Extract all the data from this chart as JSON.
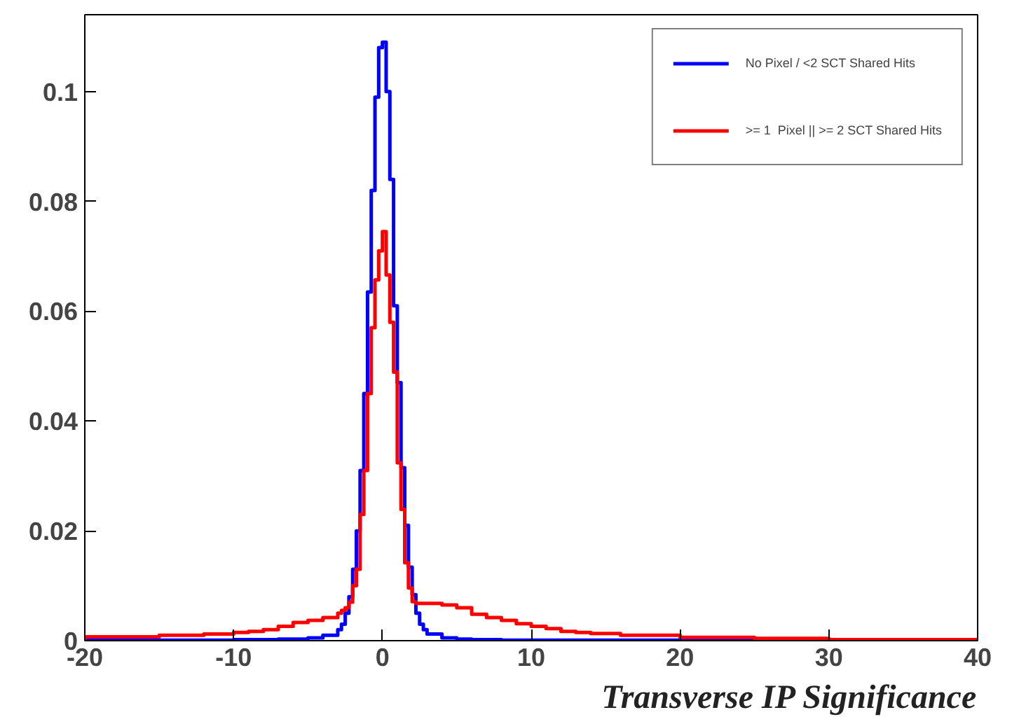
{
  "chart_data": {
    "type": "histogram",
    "xlabel": "Transverse IP Significance",
    "bins": [
      -20,
      -15,
      -12,
      -10,
      -9,
      -8,
      -7,
      -6,
      -5,
      -4,
      -3,
      -2.75,
      -2.5,
      -2.25,
      -2,
      -1.75,
      -1.5,
      -1.25,
      -1,
      -0.75,
      -0.5,
      -0.25,
      0,
      0.25,
      0.5,
      0.75,
      1,
      1.25,
      1.5,
      1.75,
      2,
      2.25,
      2.5,
      2.75,
      3,
      4,
      5,
      6,
      7,
      8,
      9,
      10,
      11,
      12,
      13,
      14,
      16,
      20,
      25,
      30,
      40
    ],
    "series": [
      {
        "name": "No Pixel / <2 SCT Shared Hits",
        "color": "#0000ff",
        "values": [
          0.0001,
          0.0001,
          0.0001,
          0.0002,
          0.0002,
          0.0002,
          0.0003,
          0.0003,
          0.0005,
          0.001,
          0.002,
          0.003,
          0.005,
          0.008,
          0.013,
          0.02,
          0.031,
          0.045,
          0.0635,
          0.082,
          0.099,
          0.108,
          0.109,
          0.1,
          0.084,
          0.061,
          0.047,
          0.0315,
          0.021,
          0.0134,
          0.0084,
          0.005,
          0.003,
          0.002,
          0.0012,
          0.0005,
          0.0003,
          0.0002,
          0.0002,
          0.0001,
          0.0001,
          0.0001,
          0.0001,
          0.0001,
          0.0001,
          0.0001,
          0.0001,
          0.0001,
          0.0001,
          0.0001
        ]
      },
      {
        "name": ">= 1  Pixel || >= 2 SCT Shared Hits",
        "color": "#ff0000",
        "values": [
          0.0007,
          0.001,
          0.0012,
          0.0015,
          0.0017,
          0.002,
          0.0026,
          0.0033,
          0.0037,
          0.0042,
          0.005,
          0.0055,
          0.006,
          0.007,
          0.01,
          0.013,
          0.023,
          0.031,
          0.045,
          0.057,
          0.0657,
          0.071,
          0.0745,
          0.0666,
          0.058,
          0.0489,
          0.0324,
          0.0239,
          0.0142,
          0.0096,
          0.0071,
          0.0068,
          0.0068,
          0.0068,
          0.0068,
          0.0065,
          0.006,
          0.0048,
          0.0042,
          0.0037,
          0.0031,
          0.0026,
          0.0022,
          0.0017,
          0.0015,
          0.0013,
          0.001,
          0.0006,
          0.0004,
          0.0002
        ]
      }
    ],
    "xlim": [
      -20,
      40
    ],
    "xticks": [
      -20,
      -10,
      0,
      10,
      20,
      30,
      40
    ],
    "ylim": [
      0,
      0.114
    ],
    "yticks": [
      0,
      0.02,
      0.04,
      0.06,
      0.08,
      0.1
    ],
    "grid": false,
    "legend": "top right"
  }
}
